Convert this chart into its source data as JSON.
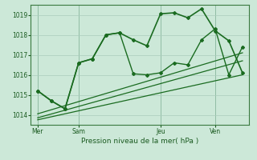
{
  "title": "Pression niveau de la mer( hPa )",
  "bg_color": "#cce8d8",
  "grid_color": "#aaccbc",
  "line_color": "#1a6b20",
  "ylim": [
    1013.5,
    1019.5
  ],
  "yticks": [
    1014,
    1015,
    1016,
    1017,
    1018,
    1019
  ],
  "xtick_labels": [
    "Mer",
    "Sam",
    "Jeu",
    "Ven"
  ],
  "xtick_positions": [
    1,
    4,
    10,
    14
  ],
  "vline_positions": [
    1,
    4,
    10,
    14
  ],
  "xlim": [
    0.5,
    16.5
  ],
  "main_x": [
    1,
    2,
    3,
    4,
    5,
    6,
    7,
    8,
    9,
    10,
    11,
    12,
    13,
    14,
    15,
    16
  ],
  "main_y": [
    1015.2,
    1014.7,
    1014.3,
    1016.6,
    1016.8,
    1018.0,
    1018.1,
    1017.75,
    1017.45,
    1019.05,
    1019.1,
    1018.85,
    1019.3,
    1018.2,
    1017.7,
    1016.1
  ],
  "lower_x": [
    1,
    2,
    3,
    4,
    5,
    6,
    7,
    8,
    9,
    10,
    11,
    12,
    13,
    14,
    15,
    16
  ],
  "lower_y": [
    1015.2,
    1014.7,
    1014.3,
    1016.6,
    1016.8,
    1018.0,
    1018.1,
    1016.05,
    1016.0,
    1016.1,
    1016.6,
    1016.5,
    1017.75,
    1018.3,
    1016.0,
    1017.4
  ],
  "trend1_x": [
    1,
    16
  ],
  "trend1_y": [
    1014.05,
    1017.1
  ],
  "trend2_x": [
    1,
    16
  ],
  "trend2_y": [
    1013.85,
    1016.7
  ],
  "trend3_x": [
    1,
    16
  ],
  "trend3_y": [
    1013.75,
    1016.0
  ]
}
